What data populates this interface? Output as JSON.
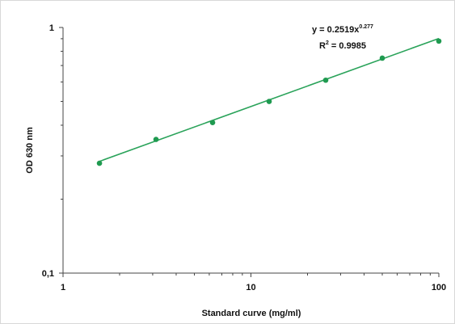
{
  "chart_data": {
    "type": "scatter",
    "title": "",
    "xlabel": "Standard curve (mg/ml)",
    "ylabel": "OD 630 nm",
    "x_scale": "log",
    "y_scale": "log",
    "xlim": [
      1,
      100
    ],
    "ylim": [
      0.1,
      1
    ],
    "x_tick_labels": [
      "1",
      "10",
      "100"
    ],
    "y_tick_labels": [
      "0,1",
      "1"
    ],
    "grid": false,
    "legend": "none",
    "series": [
      {
        "x": [
          1.5625,
          3.125,
          6.25,
          12.5,
          25,
          50,
          100
        ],
        "y": [
          0.28,
          0.35,
          0.41,
          0.5,
          0.61,
          0.75,
          0.88
        ],
        "marker_color": "#1f9a50"
      }
    ],
    "trendline": {
      "type": "power",
      "coefficient": 0.2519,
      "exponent": 0.277,
      "equation_base": "y = 0.2519x",
      "equation_exponent": "0.277",
      "r2_base": "R",
      "r2_exponent": "2",
      "r2_value": " = 0.9985",
      "color": "#2aa35a"
    },
    "colors": {
      "axis": "#444444",
      "point": "#1f9a50",
      "line": "#2aa35a"
    }
  }
}
